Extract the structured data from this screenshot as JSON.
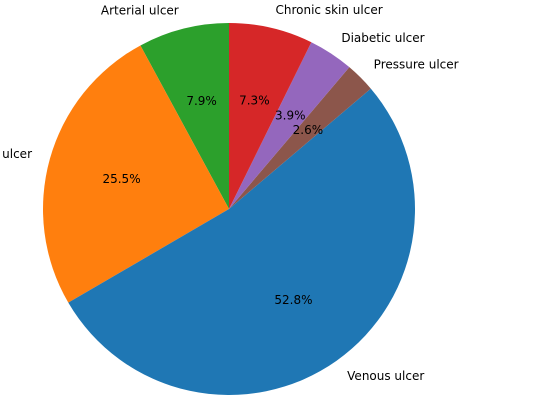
{
  "chart_data": {
    "type": "pie",
    "start_angle_deg": 90,
    "direction": "counterclockwise",
    "slices": [
      {
        "label": "Arterial ulcer",
        "value": 7.9,
        "pct_text": "7.9%",
        "color": "#2ca02c"
      },
      {
        "label": "Unclassified leg ulcer",
        "value": 25.5,
        "pct_text": "25.5%",
        "color": "#ff7f0e"
      },
      {
        "label": "Venous ulcer",
        "value": 52.8,
        "pct_text": "52.8%",
        "color": "#1f77b4"
      },
      {
        "label": "Pressure ulcer",
        "value": 2.6,
        "pct_text": "2.6%",
        "color": "#8c564b"
      },
      {
        "label": "Diabetic ulcer",
        "value": 3.9,
        "pct_text": "3.9%",
        "color": "#9467bd"
      },
      {
        "label": "Chronic skin ulcer",
        "value": 7.3,
        "pct_text": "7.3%",
        "color": "#d62728"
      }
    ]
  }
}
